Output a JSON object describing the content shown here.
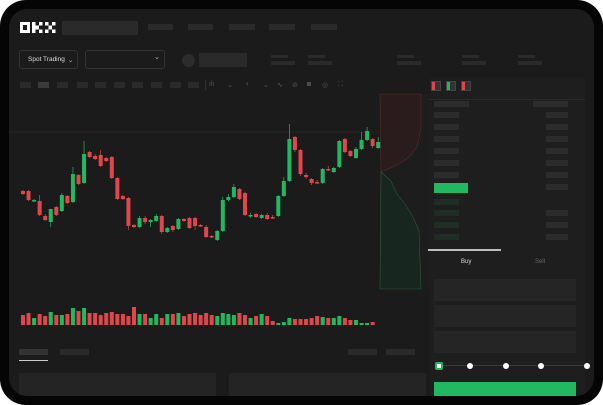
{
  "brand": {
    "logo": "OKX"
  },
  "header": {
    "nav_placeholders": 6
  },
  "toolbar": {
    "market_selector": "Spot Trading",
    "pair_selector": ""
  },
  "chart_tools": [
    "line-tool-icon",
    "measure-icon",
    "camera-icon",
    "settings-icon",
    "fullscreen-icon"
  ],
  "colors": {
    "up": "#22b860",
    "down": "#e0474c",
    "screen": "#1b1b1b",
    "buy": "#22b860"
  },
  "candles": [
    [
      118,
      115,
      119,
      114
    ],
    [
      118,
      109,
      119,
      108
    ],
    [
      108,
      109,
      110,
      107
    ],
    [
      108,
      94,
      114,
      93
    ],
    [
      93,
      89,
      95,
      88
    ],
    [
      87,
      100,
      100,
      82
    ],
    [
      102,
      94,
      103,
      93
    ],
    [
      98,
      114,
      116,
      97
    ],
    [
      113,
      106,
      114,
      105
    ],
    [
      107,
      135,
      142,
      106
    ],
    [
      134,
      125,
      135,
      124
    ],
    [
      126,
      155,
      168,
      125
    ],
    [
      157,
      152,
      158,
      151
    ],
    [
      153,
      150,
      155,
      149
    ],
    [
      154,
      143,
      159,
      142
    ],
    [
      151,
      148,
      152,
      147
    ],
    [
      152,
      131,
      153,
      130
    ],
    [
      131,
      110,
      132,
      109
    ],
    [
      113,
      110,
      114,
      109
    ],
    [
      111,
      83,
      112,
      79
    ],
    [
      84,
      82,
      85,
      81
    ],
    [
      82,
      91,
      93,
      81
    ],
    [
      91,
      87,
      93,
      85
    ],
    [
      87,
      89,
      90,
      82
    ],
    [
      88,
      93,
      95,
      87
    ],
    [
      93,
      77,
      94,
      75
    ],
    [
      77,
      81,
      82,
      76
    ],
    [
      83,
      79,
      84,
      77
    ],
    [
      80,
      90,
      91,
      79
    ],
    [
      90,
      88,
      91,
      87
    ],
    [
      91,
      81,
      92,
      80
    ],
    [
      91,
      83,
      92,
      79
    ],
    [
      84,
      83,
      85,
      82
    ],
    [
      82,
      72,
      84,
      71
    ],
    [
      73,
      72,
      74,
      71
    ],
    [
      69,
      78,
      79,
      68
    ],
    [
      78,
      109,
      112,
      77
    ],
    [
      109,
      112,
      115,
      108
    ],
    [
      112,
      122,
      125,
      111
    ],
    [
      120,
      110,
      121,
      109
    ],
    [
      116,
      94,
      117,
      93
    ],
    [
      93,
      94,
      96,
      91
    ],
    [
      95,
      92,
      96,
      91
    ],
    [
      91,
      94,
      95,
      90
    ],
    [
      94,
      90,
      96,
      89
    ],
    [
      92,
      91,
      94,
      90
    ],
    [
      93,
      113,
      114,
      92
    ],
    [
      113,
      128,
      132,
      112
    ],
    [
      128,
      170,
      185,
      127
    ],
    [
      172,
      159,
      173,
      157
    ],
    [
      159,
      135,
      160,
      133
    ],
    [
      134,
      132,
      136,
      130
    ],
    [
      130,
      126,
      131,
      124
    ],
    [
      127,
      126,
      129,
      125
    ],
    [
      126,
      140,
      141,
      125
    ],
    [
      140,
      139,
      143,
      138
    ],
    [
      137,
      141,
      142,
      136
    ],
    [
      142,
      168,
      169,
      141
    ],
    [
      170,
      157,
      171,
      156
    ],
    [
      158,
      153,
      159,
      152
    ],
    [
      151,
      160,
      162,
      150
    ],
    [
      160,
      169,
      177,
      159
    ],
    [
      169,
      178,
      182,
      168
    ],
    [
      170,
      163,
      171,
      161
    ],
    [
      161,
      167,
      172,
      160
    ]
  ],
  "volumes": [
    10,
    12,
    7,
    11,
    9,
    13,
    10,
    10,
    11,
    17,
    14,
    17,
    12,
    12,
    10,
    12,
    13,
    11,
    11,
    9,
    18,
    11,
    11,
    7,
    11,
    7,
    11,
    11,
    12,
    9,
    11,
    12,
    10,
    12,
    10,
    9,
    12,
    11,
    10,
    12,
    10,
    7,
    9,
    11,
    9,
    4,
    2,
    3,
    7,
    6,
    6,
    6,
    7,
    9,
    8,
    7,
    7,
    9,
    7,
    5,
    5,
    2,
    2,
    3
  ],
  "orderbook": {
    "view_icons": [
      "orderbook-both-icon",
      "orderbook-bids-icon",
      "orderbook-asks-icon"
    ]
  },
  "trade": {
    "tabs": [
      "Buy",
      "Sell"
    ],
    "active_tab": "Buy",
    "slider_percent": 0,
    "slider_stops": [
      0,
      25,
      50,
      75,
      100
    ]
  }
}
